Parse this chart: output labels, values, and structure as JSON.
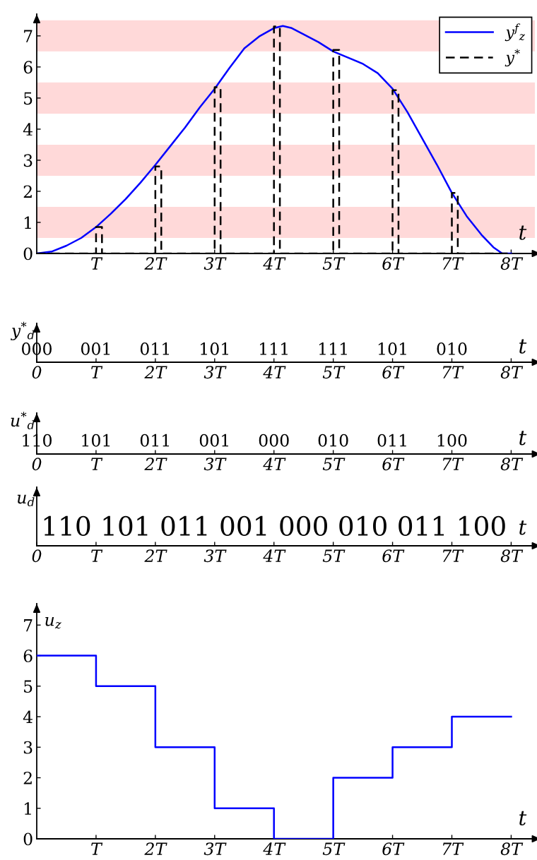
{
  "chart_data": [
    {
      "type": "line",
      "xlabel": "t",
      "xlim": [
        0,
        8.4
      ],
      "ylim": [
        0,
        7.7
      ],
      "xticks": [
        {
          "value": 1,
          "label": "T"
        },
        {
          "value": 2,
          "label": "2T"
        },
        {
          "value": 3,
          "label": "3T"
        },
        {
          "value": 4,
          "label": "4T"
        },
        {
          "value": 5,
          "label": "5T"
        },
        {
          "value": 6,
          "label": "6T"
        },
        {
          "value": 7,
          "label": "7T"
        },
        {
          "value": 8,
          "label": "8T"
        }
      ],
      "yticks": [
        0,
        1,
        2,
        3,
        4,
        5,
        6,
        7
      ],
      "legend": "top right",
      "bands": [
        {
          "axis": "y",
          "from": 0.5,
          "to": 1.5,
          "color": "#ffd9d9"
        },
        {
          "axis": "y",
          "from": 2.5,
          "to": 3.5,
          "color": "#ffd9d9"
        },
        {
          "axis": "y",
          "from": 4.5,
          "to": 5.5,
          "color": "#ffd9d9"
        },
        {
          "axis": "y",
          "from": 6.5,
          "to": 7.5,
          "color": "#ffd9d9"
        }
      ],
      "series": [
        {
          "name": "y$^{f}$$_{z}$",
          "color": "#0000ff",
          "line_style": "solid",
          "x": [
            0,
            0.25,
            0.5,
            0.75,
            1,
            1.25,
            1.5,
            1.75,
            2,
            2.25,
            2.5,
            2.75,
            3,
            3.25,
            3.5,
            3.75,
            4,
            4.15,
            4.3,
            4.5,
            4.75,
            5,
            5.25,
            5.5,
            5.75,
            6,
            6.25,
            6.5,
            6.75,
            7,
            7.25,
            7.5,
            7.7,
            7.85,
            8
          ],
          "values": [
            0,
            0.06,
            0.25,
            0.5,
            0.85,
            1.28,
            1.75,
            2.28,
            2.85,
            3.45,
            4.05,
            4.7,
            5.3,
            5.97,
            6.6,
            6.98,
            7.25,
            7.32,
            7.25,
            7.05,
            6.8,
            6.5,
            6.3,
            6.1,
            5.8,
            5.3,
            4.55,
            3.7,
            2.85,
            1.95,
            1.2,
            0.6,
            0.2,
            0,
            0
          ]
        },
        {
          "name": "y$^{*}$",
          "color": "#000000",
          "line_style": "dashed",
          "x": [
            0,
            1,
            1,
            1.1,
            1.1,
            2,
            2,
            2.1,
            2.1,
            3,
            3,
            3.1,
            3.1,
            4,
            4,
            4.1,
            4.1,
            5,
            5,
            5.1,
            5.1,
            6,
            6,
            6.1,
            6.1,
            7,
            7,
            7.1,
            7.1,
            8
          ],
          "values": [
            0,
            0,
            0.85,
            0.85,
            0,
            0,
            2.8,
            2.8,
            0,
            0,
            5.35,
            5.35,
            0,
            0,
            7.3,
            7.3,
            0,
            0,
            6.55,
            6.55,
            0,
            0,
            5.25,
            5.25,
            0,
            0,
            1.95,
            1.95,
            0,
            0
          ]
        }
      ]
    },
    {
      "type": "other",
      "ylabel": "y$^{*}$$_{d}$",
      "xlabel": "t",
      "categories": [
        "0",
        "T",
        "2T",
        "3T",
        "4T",
        "5T",
        "6T",
        "7T",
        "8T"
      ],
      "annotations": [
        {
          "text": "000",
          "x": "0"
        },
        {
          "text": "001",
          "x": "T"
        },
        {
          "text": "011",
          "x": "2T"
        },
        {
          "text": "101",
          "x": "3T"
        },
        {
          "text": "111",
          "x": "4T"
        },
        {
          "text": "111",
          "x": "5T"
        },
        {
          "text": "101",
          "x": "6T"
        },
        {
          "text": "010",
          "x": "7T"
        }
      ]
    },
    {
      "type": "other",
      "ylabel": "u$^{*}$$_{d}$",
      "xlabel": "t",
      "categories": [
        "0",
        "T",
        "2T",
        "3T",
        "4T",
        "5T",
        "6T",
        "7T",
        "8T"
      ],
      "annotations": [
        {
          "text": "110",
          "x": "0"
        },
        {
          "text": "101",
          "x": "T"
        },
        {
          "text": "011",
          "x": "2T"
        },
        {
          "text": "001",
          "x": "3T"
        },
        {
          "text": "000",
          "x": "4T"
        },
        {
          "text": "010",
          "x": "5T"
        },
        {
          "text": "011",
          "x": "6T"
        },
        {
          "text": "100",
          "x": "7T"
        }
      ]
    },
    {
      "type": "other",
      "ylabel": "u$_{d}$",
      "xlabel": "t",
      "categories": [
        "0",
        "T",
        "2T",
        "3T",
        "4T",
        "5T",
        "6T",
        "7T",
        "8T"
      ],
      "annotations": [
        "110",
        "101",
        "011",
        "001",
        "000",
        "010",
        "011",
        "100"
      ]
    },
    {
      "type": "step",
      "ylabel": "u$_{z}$",
      "xlabel": "t",
      "xlim": [
        0,
        8.4
      ],
      "ylim": [
        0,
        7.7
      ],
      "color": "#0000ff",
      "xticks": [
        {
          "value": 1,
          "label": "T"
        },
        {
          "value": 2,
          "label": "2T"
        },
        {
          "value": 3,
          "label": "3T"
        },
        {
          "value": 4,
          "label": "4T"
        },
        {
          "value": 5,
          "label": "5T"
        },
        {
          "value": 6,
          "label": "6T"
        },
        {
          "value": 7,
          "label": "7T"
        },
        {
          "value": 8,
          "label": "8T"
        }
      ],
      "yticks": [
        0,
        1,
        2,
        3,
        4,
        5,
        6,
        7
      ],
      "x": [
        0,
        1,
        2,
        3,
        4,
        5,
        6,
        7,
        8
      ],
      "values": [
        6,
        5,
        3,
        1,
        0,
        2,
        3,
        4,
        4
      ]
    }
  ]
}
